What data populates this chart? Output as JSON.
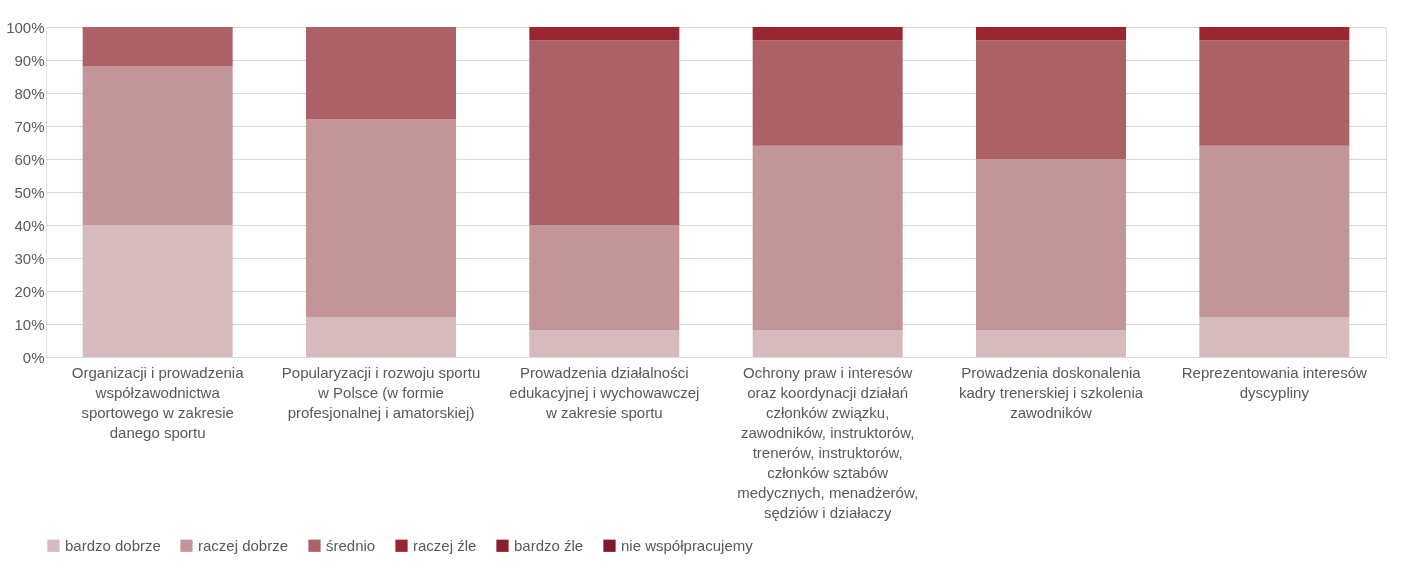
{
  "chart_data": {
    "type": "bar",
    "stacked": true,
    "categories": [
      "Organizacji i prowadzenia\nwspółzawodnictwa\nsportowego w zakresie\ndanego sportu",
      "Popularyzacji i rozwoju sportu\nw Polsce (w formie\nprofesjonalnej i amatorskiej)",
      "Prowadzenia działalności\nedukacyjnej i wychowawczej\nw zakresie sportu",
      "Ochrony praw i interesów\noraz koordynacji działań\nczłonków związku,\nzawodników, instruktorów,\ntrenerów, instruktorów,\nczłonków sztabów\nmedycznych, menadżerów,\nsędziów i działaczy",
      "Prowadzenia doskonalenia\nkadry trenerskiej i szkolenia\nzawodników",
      "Reprezentowania interesów\ndyscypliny"
    ],
    "series": [
      {
        "name": "bardzo dobrze",
        "color": "#d6bbbe",
        "values": [
          40,
          12,
          8,
          8,
          8,
          12
        ]
      },
      {
        "name": "raczej dobrze",
        "color": "#c29698",
        "values": [
          48,
          60,
          32,
          56,
          52,
          52
        ]
      },
      {
        "name": "średnio",
        "color": "#ab6165",
        "values": [
          12,
          28,
          56,
          32,
          36,
          32
        ]
      },
      {
        "name": "raczej źle",
        "color": "#982633",
        "values": [
          null,
          null,
          4,
          4,
          4,
          4
        ]
      },
      {
        "name": "bardzo źle",
        "color": "#8a1f2d",
        "values": [
          null,
          null,
          null,
          null,
          null,
          null
        ]
      },
      {
        "name": "nie współpracujemy",
        "color": "#7a1b27",
        "values": [
          null,
          null,
          null,
          null,
          null,
          null
        ]
      }
    ],
    "ylim": [
      0,
      100
    ],
    "yticks": [
      {
        "value": 0,
        "label": "0%"
      },
      {
        "value": 10,
        "label": "10%"
      },
      {
        "value": 20,
        "label": "20%"
      },
      {
        "value": 30,
        "label": "30%"
      },
      {
        "value": 40,
        "label": "40%"
      },
      {
        "value": 50,
        "label": "50%"
      },
      {
        "value": 60,
        "label": "60%"
      },
      {
        "value": 70,
        "label": "70%"
      },
      {
        "value": 80,
        "label": "80%"
      },
      {
        "value": 90,
        "label": "90%"
      },
      {
        "value": 100,
        "label": "100%"
      }
    ],
    "grid": "y",
    "legend": "bottom"
  }
}
